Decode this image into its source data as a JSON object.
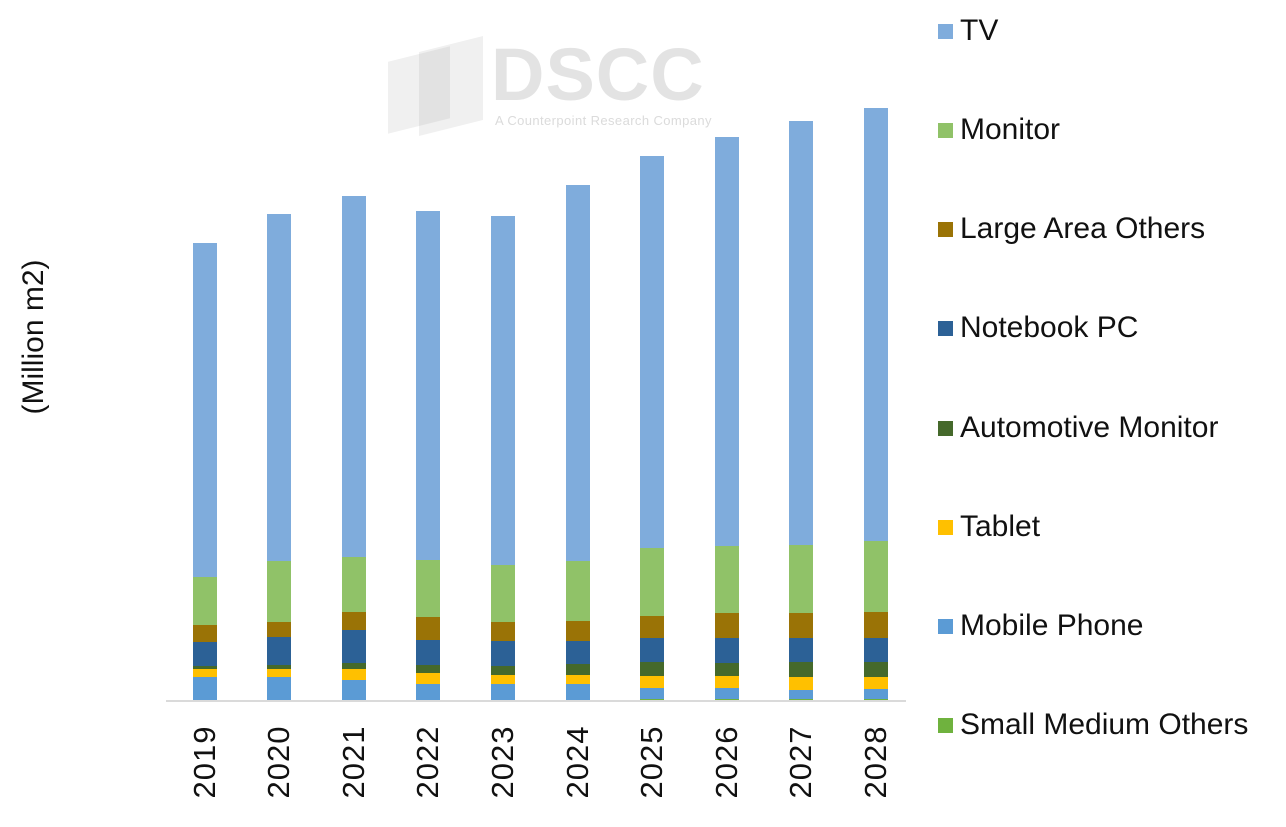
{
  "y_axis_label": "(Million m2)",
  "watermark": {
    "brand": "DSCC",
    "tagline": "A Counterpoint Research Company"
  },
  "chart_data": {
    "type": "bar",
    "subtype": "stacked-column",
    "title": "",
    "xlabel": "",
    "ylabel": "(Million m2)",
    "unit": "Million m2",
    "categories": [
      "2019",
      "2020",
      "2021",
      "2022",
      "2023",
      "2024",
      "2025",
      "2026",
      "2027",
      "2028"
    ],
    "ylim": [
      0,
      304
    ],
    "grid": false,
    "legend_position": "right",
    "stack_order_bottom_to_top": [
      "Small Medium Others",
      "Mobile Phone",
      "Tablet",
      "Automotive Monitor",
      "Notebook PC",
      "Large Area Others",
      "Monitor",
      "TV"
    ],
    "legend_order_top_to_bottom": [
      "TV",
      "Monitor",
      "Large Area Others",
      "Notebook PC",
      "Automotive Monitor",
      "Tablet",
      "Mobile Phone",
      "Small Medium Others"
    ],
    "series": [
      {
        "name": "Small Medium Others",
        "color": "#6FB23E",
        "values": [
          0.5,
          0.5,
          0.5,
          0.5,
          0.5,
          0.5,
          0.8,
          0.8,
          0.8,
          1.0
        ]
      },
      {
        "name": "Mobile Phone",
        "color": "#5B9BD5",
        "values": [
          11.8,
          11.5,
          10.1,
          8.1,
          8.1,
          8.1,
          5.6,
          5.6,
          5.0,
          4.9
        ]
      },
      {
        "name": "Tablet",
        "color": "#FFC000",
        "values": [
          3.9,
          4.2,
          5.8,
          5.6,
          4.6,
          4.7,
          6.4,
          6.2,
          6.2,
          6.4
        ]
      },
      {
        "name": "Automotive Monitor",
        "color": "#45692B",
        "values": [
          1.4,
          2.0,
          3.0,
          4.0,
          4.7,
          5.4,
          7.1,
          6.4,
          7.8,
          7.6
        ]
      },
      {
        "name": "Notebook PC",
        "color": "#2C6196",
        "values": [
          12.1,
          14.0,
          16.3,
          12.8,
          12.3,
          11.5,
          12.1,
          13.0,
          12.1,
          12.1
        ]
      },
      {
        "name": "Large Area Others",
        "color": "#9A7306",
        "values": [
          8.8,
          7.7,
          9.1,
          11.6,
          9.6,
          10.4,
          10.9,
          12.7,
          12.7,
          13.2
        ]
      },
      {
        "name": "Monitor",
        "color": "#90C268",
        "values": [
          24.4,
          31.0,
          28.3,
          28.7,
          29.1,
          30.1,
          34.3,
          33.6,
          34.6,
          35.8
        ]
      },
      {
        "name": "TV",
        "color": "#7FACDC",
        "values": [
          168.9,
          175.4,
          182.6,
          176.6,
          176.4,
          190.4,
          198.4,
          207.0,
          214.0,
          219.1
        ]
      }
    ]
  }
}
